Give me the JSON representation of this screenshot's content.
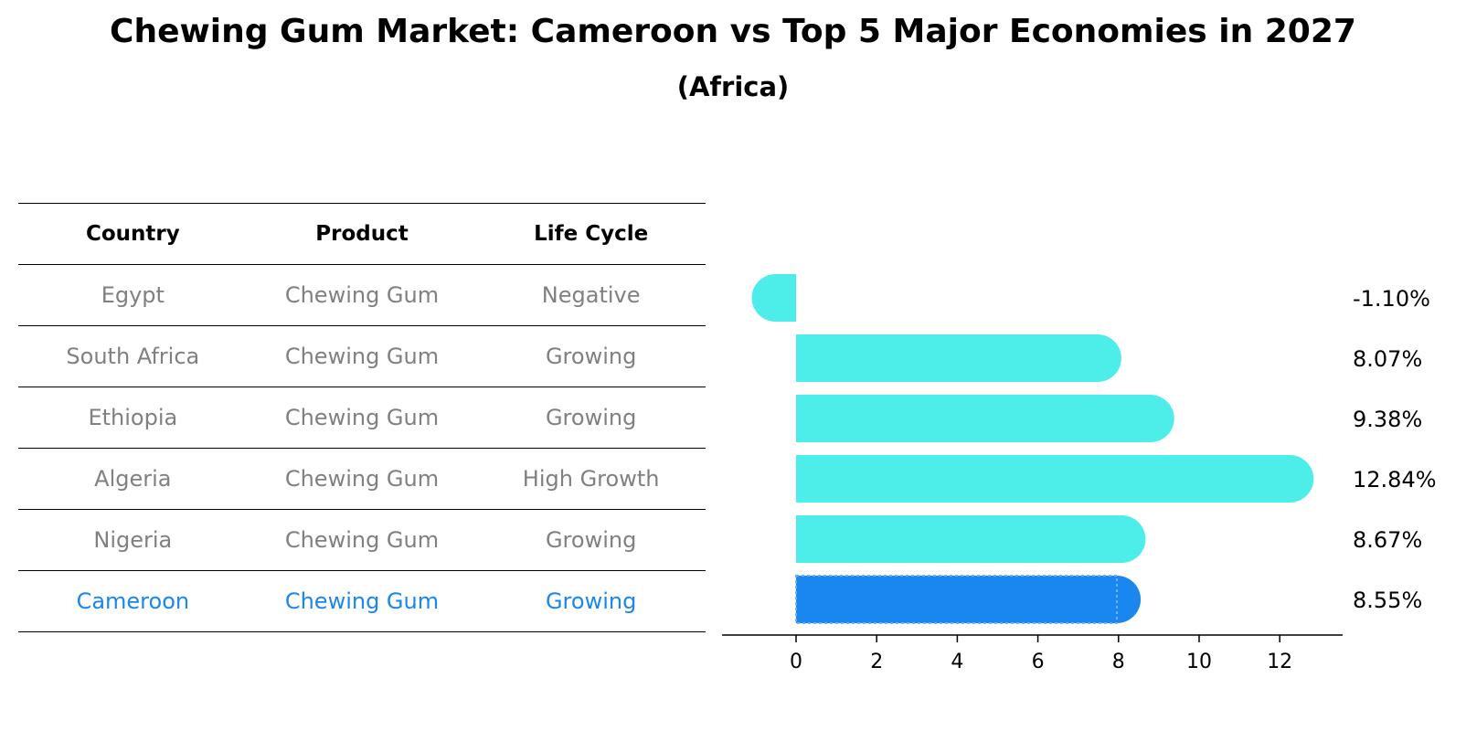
{
  "title": "Chewing Gum Market: Cameroon vs Top 5 Major Economies in 2027",
  "subtitle": "(Africa)",
  "table": {
    "headers": [
      "Country",
      "Product",
      "Life Cycle"
    ],
    "rows": [
      [
        "Egypt",
        "Chewing Gum",
        "Negative"
      ],
      [
        "South Africa",
        "Chewing Gum",
        "Growing"
      ],
      [
        "Ethiopia",
        "Chewing Gum",
        "Growing"
      ],
      [
        "Algeria",
        "Chewing Gum",
        "High Growth"
      ],
      [
        "Nigeria",
        "Chewing Gum",
        "Growing"
      ],
      [
        "Cameroon",
        "Chewing Gum",
        "Growing"
      ]
    ],
    "highlight_row": 5
  },
  "colors": {
    "bar": "#4deeea",
    "highlight": "#1a86f0",
    "table_text": "#808080"
  },
  "chart_data": {
    "type": "bar",
    "orientation": "horizontal",
    "categories": [
      "Egypt",
      "South Africa",
      "Ethiopia",
      "Algeria",
      "Nigeria",
      "Cameroon"
    ],
    "values": [
      -1.1,
      8.07,
      9.38,
      12.84,
      8.67,
      8.55
    ],
    "value_labels": [
      "-1.10%",
      "8.07%",
      "9.38%",
      "12.84%",
      "8.67%",
      "8.55%"
    ],
    "xlim": [
      -1.8,
      13.6
    ],
    "xticks": [
      0,
      2,
      4,
      6,
      8,
      10,
      12
    ],
    "xlabel": "",
    "ylabel": "",
    "grid": false,
    "highlight_index": 5
  }
}
